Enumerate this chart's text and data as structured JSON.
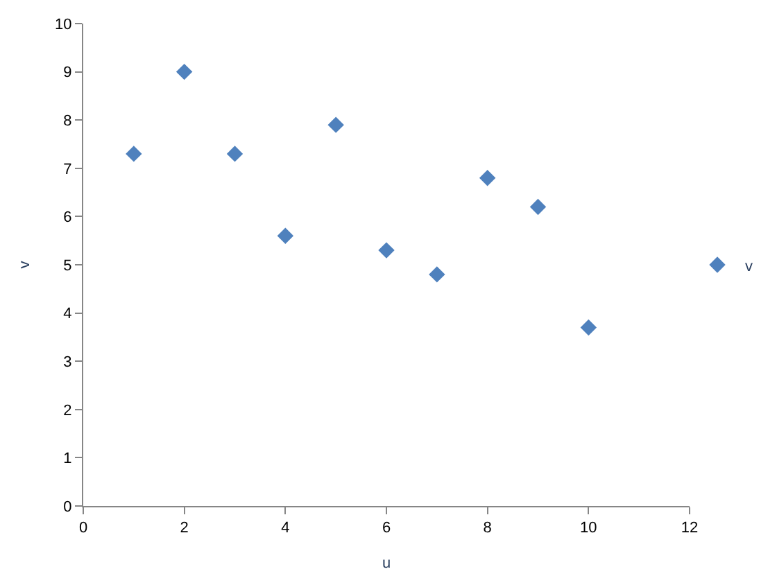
{
  "chart_data": {
    "type": "scatter",
    "xlabel": "u",
    "ylabel": "v",
    "x": [
      1,
      2,
      3,
      4,
      5,
      6,
      7,
      8,
      9,
      10
    ],
    "series": [
      {
        "name": "v",
        "color": "#4f81bd",
        "values": [
          7.3,
          9.0,
          7.3,
          5.6,
          7.9,
          5.3,
          4.8,
          6.8,
          6.2,
          3.7
        ]
      }
    ],
    "xlim": [
      0,
      12
    ],
    "xticks": [
      0,
      2,
      4,
      6,
      8,
      10,
      12
    ],
    "ylim": [
      0,
      10
    ],
    "yticks": [
      0,
      1,
      2,
      3,
      4,
      5,
      6,
      7,
      8,
      9,
      10
    ],
    "grid": false,
    "legend": "right",
    "marker": "diamond"
  }
}
